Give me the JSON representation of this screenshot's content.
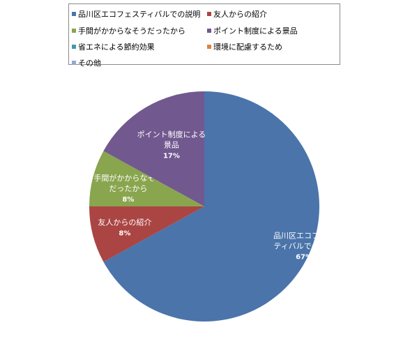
{
  "chart_data": {
    "type": "pie",
    "title": "",
    "legend_position": "top",
    "slices": [
      {
        "name": "品川区エコフェスティバルでの説明",
        "label": [
          "品川区エコフェス",
          "ティバルでの説明"
        ],
        "percent_label": "67%",
        "value": 67,
        "color": "#4a74aa"
      },
      {
        "name": "友人からの紹介",
        "label": [
          "友人からの紹介"
        ],
        "percent_label": "8%",
        "value": 8,
        "color": "#aa4543"
      },
      {
        "name": "手間がかからなそうだったから",
        "label": [
          "手間がかからなそう",
          "だったから"
        ],
        "percent_label": "8%",
        "value": 8,
        "color": "#89a54e"
      },
      {
        "name": "ポイント制度による景品",
        "label": [
          "ポイント制度による",
          "景品"
        ],
        "percent_label": "17%",
        "value": 17,
        "color": "#71588f"
      },
      {
        "name": "省エネによる節約効果",
        "label": [],
        "percent_label": "",
        "value": 0,
        "color": "#4198af"
      },
      {
        "name": "環境に配慮するため",
        "label": [],
        "percent_label": "",
        "value": 0,
        "color": "#db843d"
      },
      {
        "name": "その他",
        "label": [],
        "percent_label": "",
        "value": 0,
        "color": "#93a9cf"
      }
    ]
  }
}
